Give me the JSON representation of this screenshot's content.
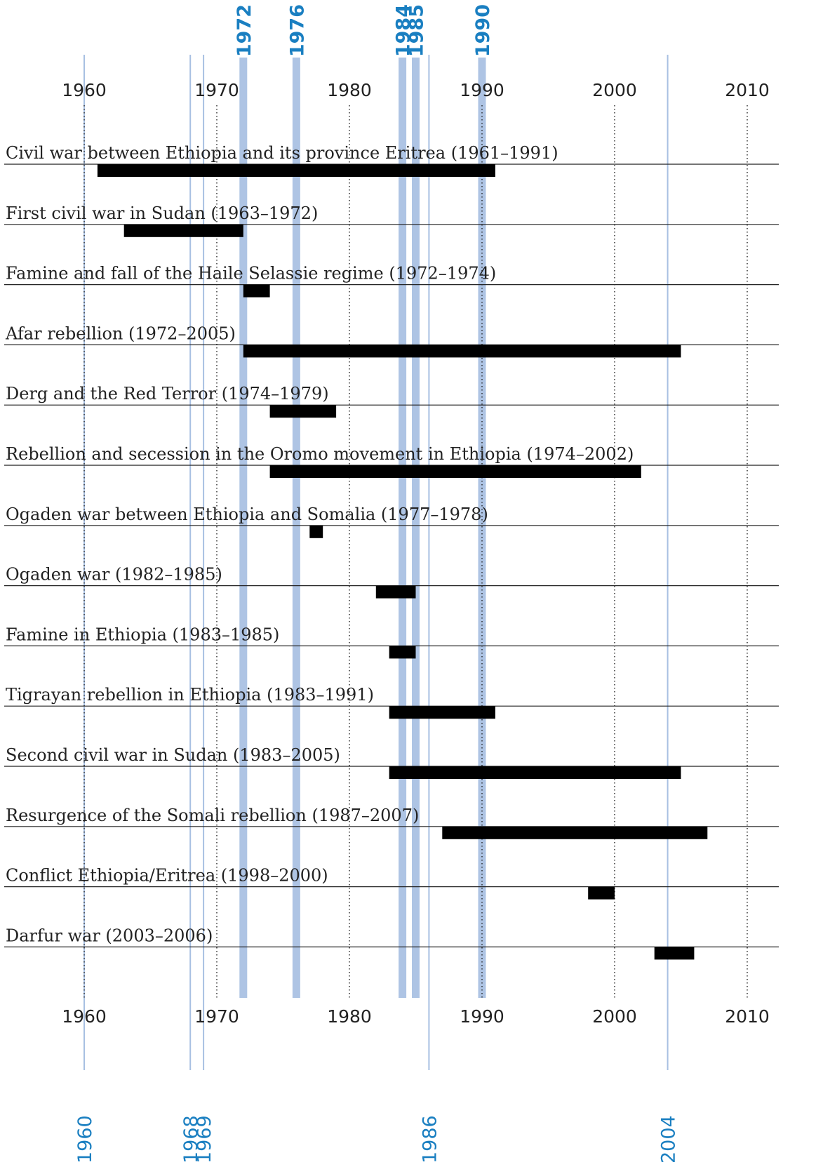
{
  "colors": {
    "bar": "#000000",
    "row_line": "#222222",
    "grid": "#222222",
    "thick_highlight": "#aec4e4",
    "thin_highlight": "#a8c0e2",
    "highlight_text": "#1a7fc1",
    "text": "#222222"
  },
  "chart_data": {
    "type": "timeline",
    "xlim": [
      1958,
      2013
    ],
    "axis_ticks": [
      "1960",
      "1970",
      "1980",
      "1990",
      "2000",
      "2010"
    ],
    "highlight_years_top": [
      "1972",
      "1976",
      "1984",
      "1985",
      "1990"
    ],
    "highlight_years_bottom": [
      "1960",
      "1968",
      "1969",
      "1986",
      "2004"
    ],
    "events": [
      {
        "label": "Civil war between Ethiopia and its province Eritrea (1961–1991)",
        "start": 1961,
        "end": 1991
      },
      {
        "label": "First civil war in Sudan (1963–1972)",
        "start": 1963,
        "end": 1972
      },
      {
        "label": "Famine and fall of the Haile Selassie regime (1972–1974)",
        "start": 1972,
        "end": 1974
      },
      {
        "label": "Afar rebellion (1972–2005)",
        "start": 1972,
        "end": 2005
      },
      {
        "label": "Derg and the Red Terror (1974–1979)",
        "start": 1974,
        "end": 1979
      },
      {
        "label": "Rebellion and secession in the Oromo movement in Ethiopia (1974–2002)",
        "start": 1974,
        "end": 2002
      },
      {
        "label": "Ogaden war between Ethiopia and Somalia (1977–1978)",
        "start": 1977,
        "end": 1978
      },
      {
        "label": "Ogaden war (1982–1985)",
        "start": 1982,
        "end": 1985
      },
      {
        "label": "Famine in Ethiopia (1983–1985)",
        "start": 1983,
        "end": 1985
      },
      {
        "label": "Tigrayan rebellion in Ethiopia (1983–1991)",
        "start": 1983,
        "end": 1991
      },
      {
        "label": "Second civil war in Sudan (1983–2005)",
        "start": 1983,
        "end": 2005
      },
      {
        "label": "Resurgence of the Somali rebellion (1987–2007)",
        "start": 1987,
        "end": 2007
      },
      {
        "label": "Conflict Ethiopia/Eritrea (1998–2000)",
        "start": 1998,
        "end": 2000
      },
      {
        "label": "Darfur war (2003–2006)",
        "start": 2003,
        "end": 2006
      }
    ]
  }
}
